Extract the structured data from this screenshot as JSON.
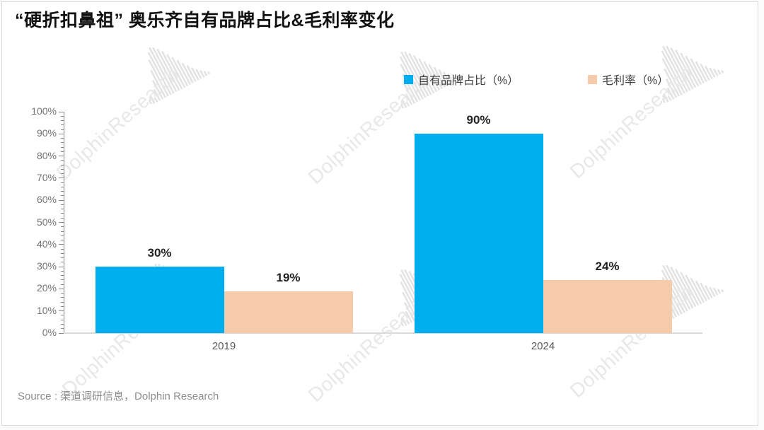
{
  "title": "“硬折扣鼻祖” 奥乐齐自有品牌占比&毛利率变化",
  "watermark": {
    "text": "DolphinResearch"
  },
  "legend": [
    {
      "label": "自有品牌占比（%）",
      "color": "#00AEEF"
    },
    {
      "label": "毛利率（%）",
      "color": "#F6CBAB"
    }
  ],
  "source": "Source : 渠道调研信息，Dolphin Research",
  "chart_data": {
    "type": "bar",
    "title": "“硬折扣鼻祖” 奥乐齐自有品牌占比&毛利率变化",
    "categories": [
      "2019",
      "2024"
    ],
    "series": [
      {
        "name": "自有品牌占比（%）",
        "color": "#00AEEF",
        "values": [
          30,
          90
        ]
      },
      {
        "name": "毛利率（%）",
        "color": "#F6CBAB",
        "values": [
          19,
          24
        ]
      }
    ],
    "data_labels": [
      [
        "30%",
        "90%"
      ],
      [
        "19%",
        "24%"
      ]
    ],
    "xlabel": "",
    "ylabel": "",
    "ylim": [
      0,
      100
    ],
    "ytick_step": 10,
    "ytick_minor_step": 2,
    "ytick_suffix": "%",
    "grid": false,
    "legend_position": "top"
  }
}
